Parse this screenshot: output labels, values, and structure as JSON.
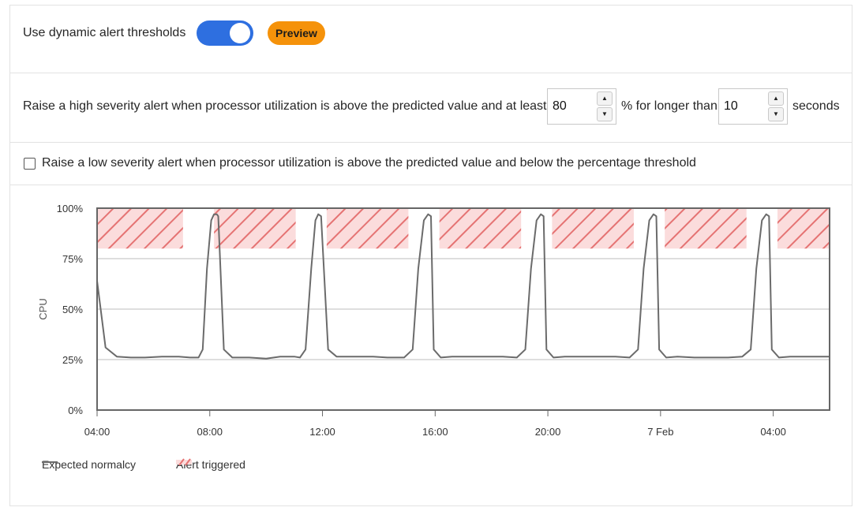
{
  "dynamic_toggle": {
    "label": "Use dynamic alert thresholds",
    "enabled": true,
    "preview_label": "Preview"
  },
  "high_alert": {
    "text_before": "Raise a high severity alert when processor utilization is above the predicted value and at least",
    "percent_value": "80",
    "text_middle": "% for longer than",
    "seconds_value": "10",
    "text_after": "seconds"
  },
  "low_alert": {
    "checked": false,
    "text": "Raise a low severity alert when processor utilization is above the predicted value and below the percentage threshold"
  },
  "chart_data": {
    "type": "line",
    "ylabel": "CPU",
    "y_ticks": [
      "100%",
      "75%",
      "50%",
      "25%",
      "0%"
    ],
    "x_ticks": [
      "04:00",
      "08:00",
      "12:00",
      "16:00",
      "20:00",
      "7 Feb",
      "04:00"
    ],
    "ylim": [
      0,
      100
    ],
    "x_hours": [
      0,
      26
    ],
    "series": [
      {
        "name": "Expected normalcy",
        "color": "#6b6b6b",
        "x": [
          0,
          0.3,
          0.7,
          1.2,
          1.7,
          2.3,
          2.9,
          3.3,
          3.6,
          3.75,
          3.9,
          4.05,
          4.15,
          4.25,
          4.3,
          4.5,
          4.8,
          5.4,
          6.0,
          6.5,
          7.0,
          7.2,
          7.4,
          7.6,
          7.75,
          7.85,
          7.95,
          8.2,
          8.5,
          9.0,
          9.8,
          10.3,
          10.9,
          11.2,
          11.4,
          11.6,
          11.75,
          11.85,
          11.95,
          12.2,
          12.6,
          13.2,
          13.8,
          14.4,
          14.9,
          15.2,
          15.4,
          15.6,
          15.75,
          15.85,
          15.95,
          16.2,
          16.6,
          17.2,
          17.8,
          18.4,
          18.9,
          19.2,
          19.4,
          19.6,
          19.75,
          19.85,
          19.95,
          20.2,
          20.6,
          21.2,
          21.8,
          22.4,
          22.9,
          23.2,
          23.4,
          23.6,
          23.75,
          23.85,
          23.95,
          24.2,
          24.6,
          25.2,
          25.8,
          26.0
        ],
        "values": [
          64,
          31,
          26.5,
          26,
          26,
          26.5,
          26.5,
          26,
          26,
          30,
          70,
          94,
          97,
          97,
          96,
          30,
          26,
          26,
          25.5,
          26.5,
          26.5,
          26,
          30,
          70,
          94,
          97,
          96,
          30,
          26.5,
          26.5,
          26.5,
          26,
          26,
          30,
          70,
          94,
          97,
          96,
          30,
          26,
          26.5,
          26.5,
          26.5,
          26.5,
          26,
          30,
          70,
          94,
          97,
          96,
          30,
          26,
          26.5,
          26.5,
          26.5,
          26.5,
          26,
          30,
          70,
          94,
          97,
          96,
          30,
          26,
          26.5,
          26,
          26,
          26,
          26.5,
          30,
          70,
          94,
          97,
          96,
          30,
          26,
          26.5,
          26.5,
          26.5,
          26.5
        ]
      }
    ],
    "alert_band": {
      "name": "Alert triggered",
      "color": "#e57373",
      "lower": 80,
      "upper": 100,
      "spans": [
        [
          0,
          3.05
        ],
        [
          4.15,
          7.05
        ],
        [
          8.15,
          11.05
        ],
        [
          12.15,
          15.05
        ],
        [
          16.15,
          19.05
        ],
        [
          20.15,
          23.05
        ],
        [
          24.15,
          26.0
        ]
      ]
    }
  },
  "legend": [
    {
      "label": "Expected normalcy"
    },
    {
      "label": "Alert triggered"
    }
  ]
}
